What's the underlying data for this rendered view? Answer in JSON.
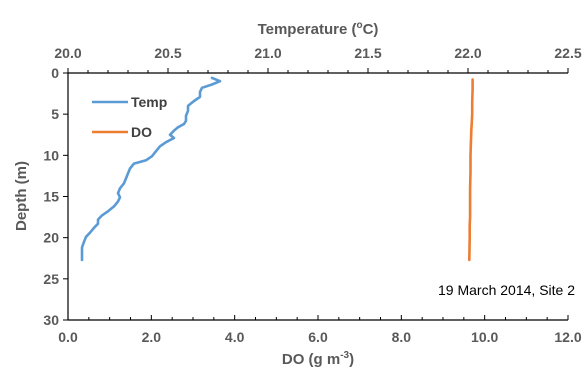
{
  "chart_data": {
    "type": "line",
    "top_axis": {
      "title": "Temperature (°C)",
      "min": 20.0,
      "max": 22.5,
      "ticks": [
        "20.0",
        "20.5",
        "21.0",
        "21.5",
        "22.0",
        "22.5"
      ]
    },
    "bottom_axis": {
      "title": "DO (g m-3)",
      "min": 0,
      "max": 12,
      "ticks": [
        "0.0",
        "2.0",
        "4.0",
        "6.0",
        "8.0",
        "10.0",
        "12.0"
      ]
    },
    "y_axis": {
      "title": "Depth (m)",
      "min": 0,
      "max": 30,
      "reversed": true,
      "ticks": [
        "0",
        "5",
        "10",
        "15",
        "20",
        "25",
        "30"
      ]
    },
    "legend_position": "top-left",
    "annotation": "19 March 2014, Site 2",
    "series": [
      {
        "name": "Temp",
        "x_axis": "top",
        "color": "#5B9BD5",
        "points": [
          [
            20.72,
            0.6
          ],
          [
            20.76,
            1.0
          ],
          [
            20.72,
            1.4
          ],
          [
            20.67,
            1.8
          ],
          [
            20.66,
            2.3
          ],
          [
            20.66,
            2.9
          ],
          [
            20.63,
            3.4
          ],
          [
            20.6,
            4.0
          ],
          [
            20.6,
            4.6
          ],
          [
            20.59,
            5.2
          ],
          [
            20.59,
            5.8
          ],
          [
            20.58,
            6.2
          ],
          [
            20.55,
            6.6
          ],
          [
            20.53,
            7.0
          ],
          [
            20.51,
            7.5
          ],
          [
            20.53,
            7.9
          ],
          [
            20.49,
            8.4
          ],
          [
            20.46,
            8.9
          ],
          [
            20.44,
            9.5
          ],
          [
            20.42,
            10.1
          ],
          [
            20.39,
            10.6
          ],
          [
            20.33,
            11.0
          ],
          [
            20.31,
            11.6
          ],
          [
            20.3,
            12.2
          ],
          [
            20.29,
            12.8
          ],
          [
            20.28,
            13.4
          ],
          [
            20.26,
            14.0
          ],
          [
            20.25,
            14.6
          ],
          [
            20.26,
            15.1
          ],
          [
            20.25,
            15.6
          ],
          [
            20.23,
            16.2
          ],
          [
            20.2,
            16.8
          ],
          [
            20.17,
            17.3
          ],
          [
            20.15,
            17.8
          ],
          [
            20.15,
            18.3
          ],
          [
            20.13,
            18.8
          ],
          [
            20.11,
            19.4
          ],
          [
            20.09,
            19.9
          ],
          [
            20.08,
            20.5
          ],
          [
            20.07,
            21.2
          ],
          [
            20.07,
            21.9
          ],
          [
            20.07,
            22.7
          ]
        ]
      },
      {
        "name": "DO",
        "x_axis": "bottom",
        "color": "#ED7D31",
        "points": [
          [
            9.71,
            0.8
          ],
          [
            9.71,
            2.0
          ],
          [
            9.7,
            3.5
          ],
          [
            9.7,
            5.0
          ],
          [
            9.69,
            6.0
          ],
          [
            9.68,
            7.0
          ],
          [
            9.67,
            8.5
          ],
          [
            9.66,
            10.0
          ],
          [
            9.66,
            12.0
          ],
          [
            9.65,
            14.0
          ],
          [
            9.65,
            16.0
          ],
          [
            9.65,
            17.5
          ],
          [
            9.64,
            18.5
          ],
          [
            9.64,
            20.0
          ],
          [
            9.63,
            22.7
          ]
        ]
      }
    ]
  }
}
